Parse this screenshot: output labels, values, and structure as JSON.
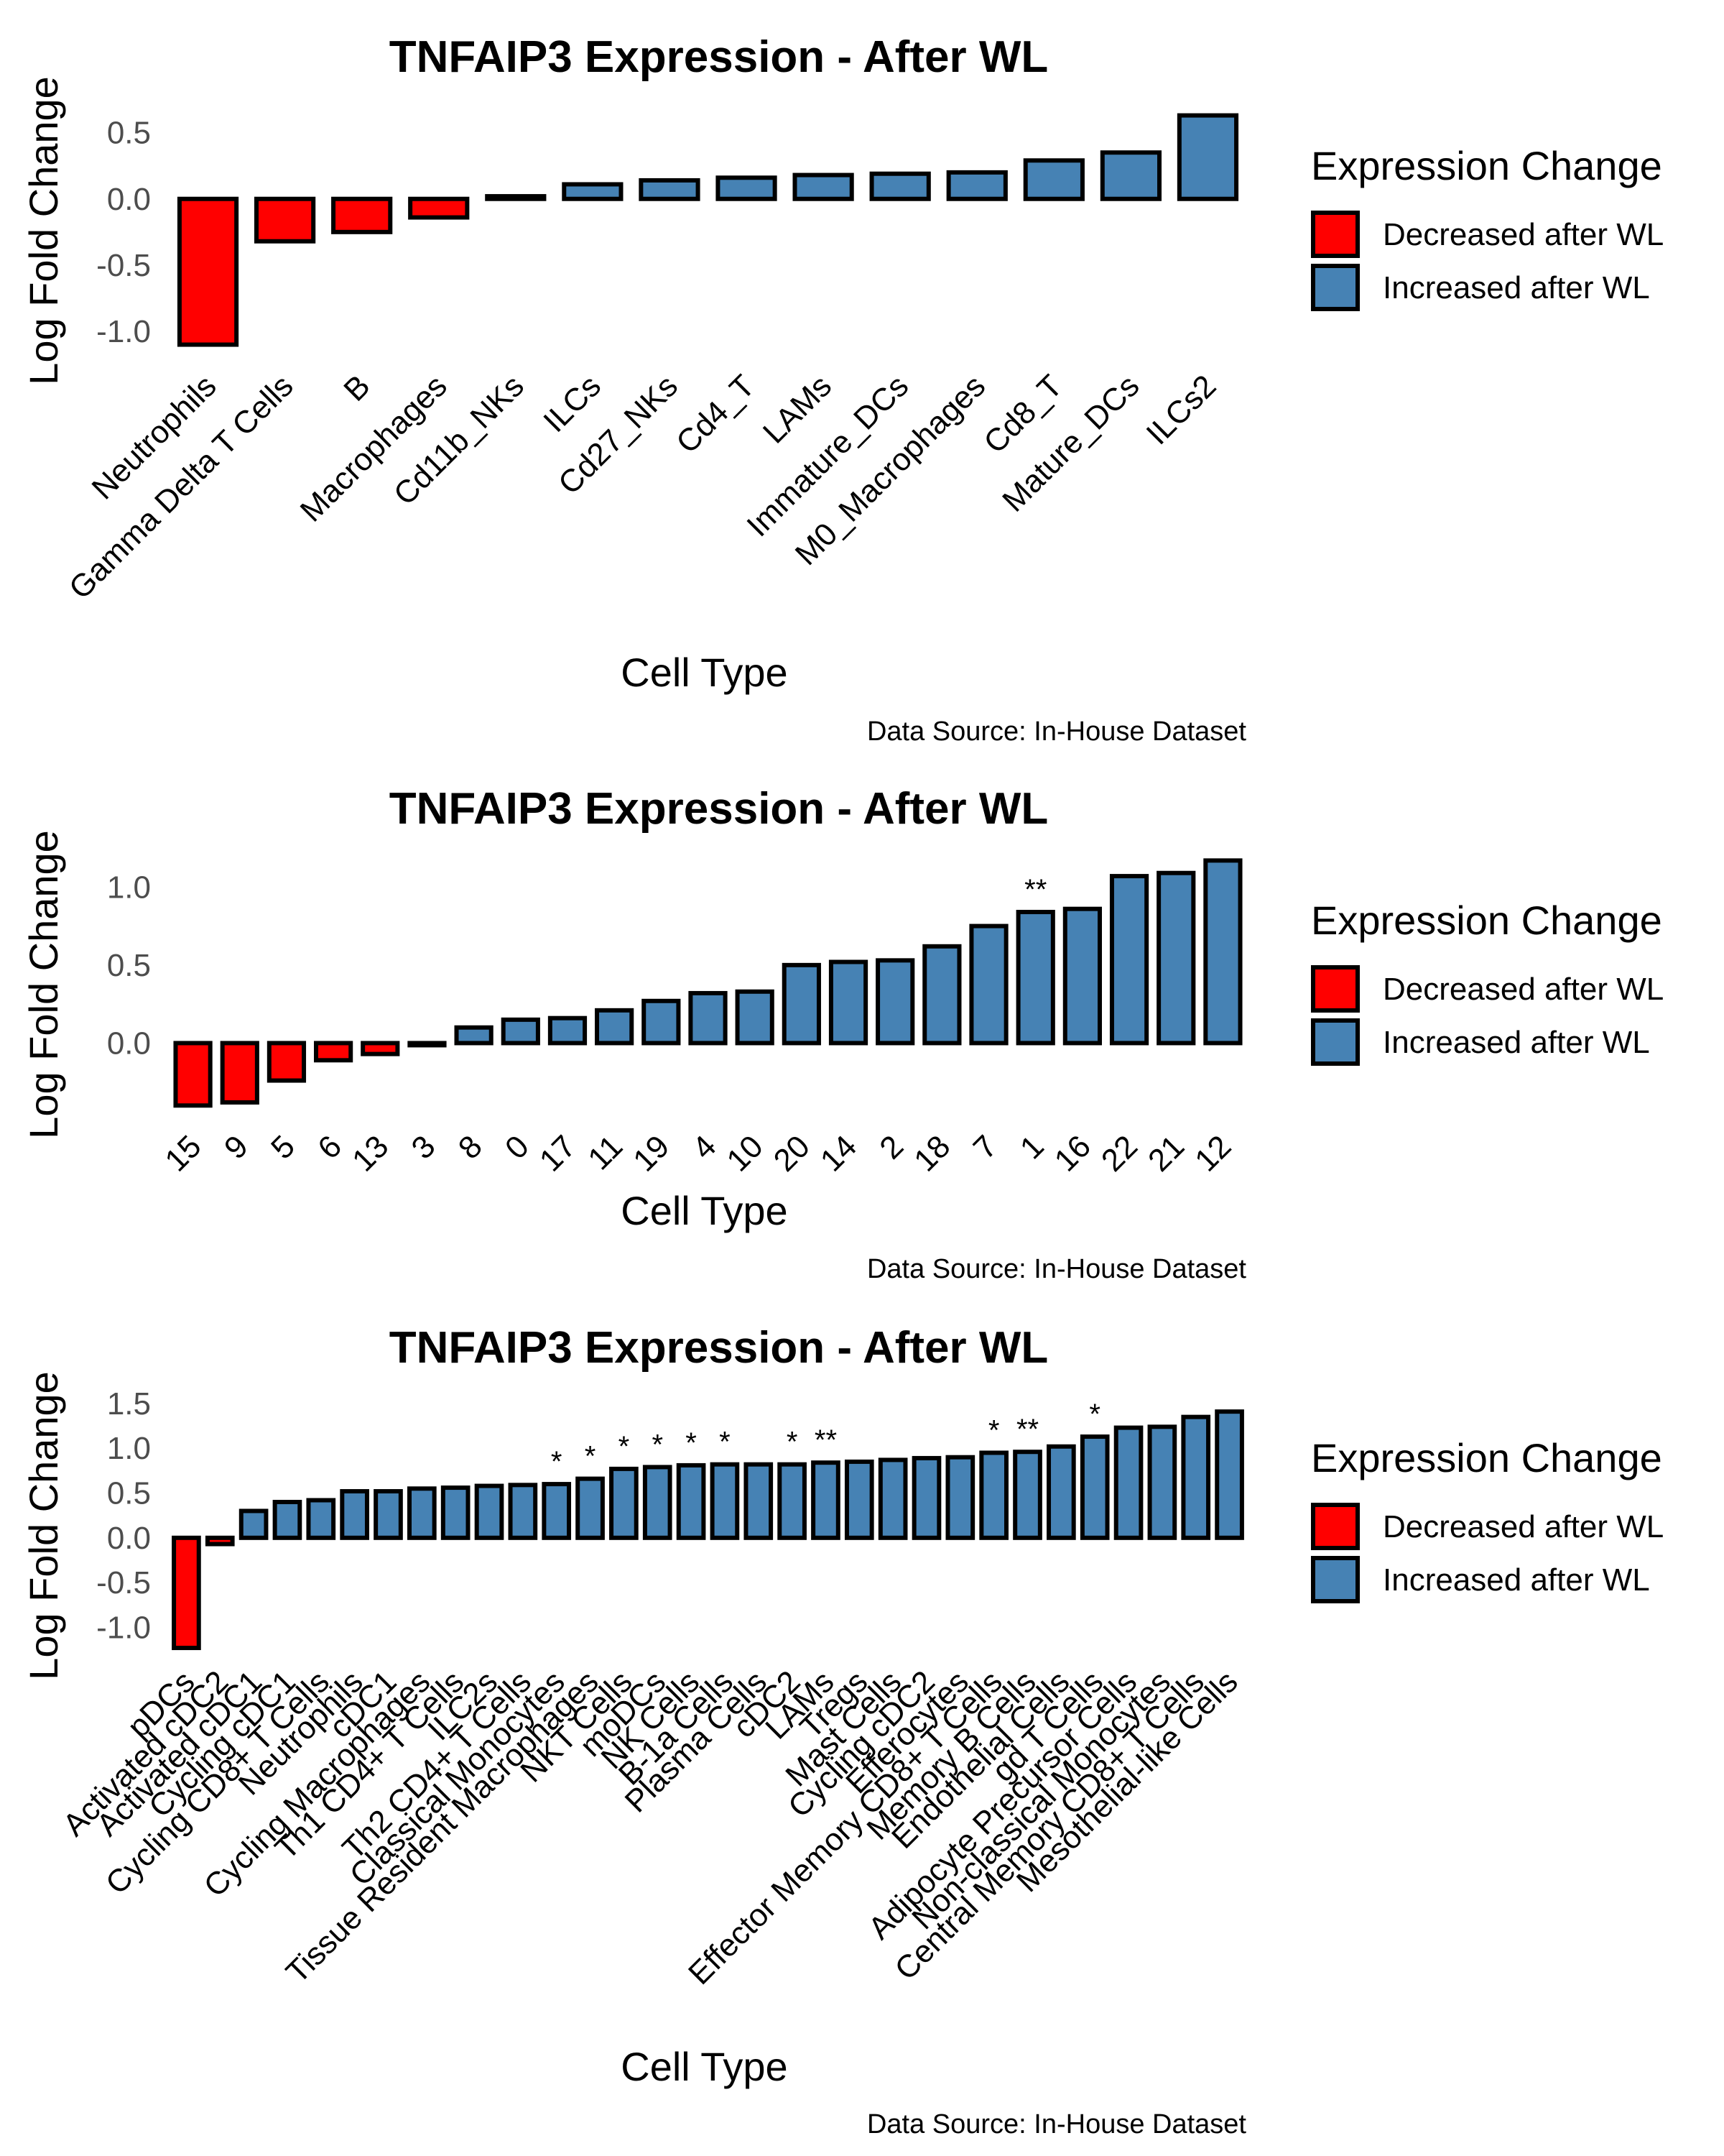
{
  "colors": {
    "decreased": "#FF0000",
    "increased": "#4682B4",
    "outline": "#000000"
  },
  "chart_data": [
    {
      "type": "bar",
      "title": "TNFAIP3 Expression - After WL",
      "xlabel": "Cell Type",
      "ylabel": "Log Fold Change",
      "caption": "Data Source: In-House Dataset",
      "yticks": [
        0.5,
        0.0,
        -0.5,
        -1.0
      ],
      "ytick_labels": [
        "0.5",
        "0.0",
        "-0.5",
        "-1.0"
      ],
      "ylim": [
        -1.2,
        0.72
      ],
      "legend": {
        "title": "Expression Change",
        "position": "right",
        "items": [
          {
            "label": "Decreased after WL",
            "color": "#FF0000"
          },
          {
            "label": "Increased after WL",
            "color": "#4682B4"
          }
        ]
      },
      "categories": [
        "Neutrophils",
        "Gamma Delta T Cells",
        "B",
        "Macrophages",
        "Cd11b_NKs",
        "ILCs",
        "Cd27_NKs",
        "Cd4_T",
        "LAMs",
        "Immature_DCs",
        "M0_Macrophages",
        "Cd8_T",
        "Mature_DCs",
        "ILCs2"
      ],
      "values": [
        -1.1,
        -0.32,
        -0.25,
        -0.14,
        0.02,
        0.11,
        0.14,
        0.16,
        0.18,
        0.19,
        0.2,
        0.29,
        0.35,
        0.63
      ],
      "significance": [
        "",
        "",
        "",
        "",
        "",
        "",
        "",
        "",
        "",
        "",
        "",
        "",
        "",
        ""
      ]
    },
    {
      "type": "bar",
      "title": "TNFAIP3 Expression - After WL",
      "xlabel": "Cell Type",
      "ylabel": "Log Fold Change",
      "caption": "Data Source: In-House Dataset",
      "yticks": [
        1.0,
        0.5,
        0.0
      ],
      "ytick_labels": [
        "1.0",
        "0.5",
        "0.0"
      ],
      "ylim": [
        -0.5,
        1.25
      ],
      "legend": {
        "title": "Expression Change",
        "position": "right",
        "items": [
          {
            "label": "Decreased after WL",
            "color": "#FF0000"
          },
          {
            "label": "Increased after WL",
            "color": "#4682B4"
          }
        ]
      },
      "categories": [
        "15",
        "9",
        "5",
        "6",
        "13",
        "3",
        "8",
        "0",
        "17",
        "11",
        "19",
        "4",
        "10",
        "20",
        "14",
        "2",
        "18",
        "7",
        "1",
        "16",
        "22",
        "21",
        "12"
      ],
      "values": [
        -0.4,
        -0.38,
        -0.24,
        -0.11,
        -0.07,
        -0.01,
        0.1,
        0.15,
        0.16,
        0.21,
        0.27,
        0.32,
        0.33,
        0.5,
        0.52,
        0.53,
        0.62,
        0.75,
        0.84,
        0.86,
        1.07,
        1.09,
        1.17
      ],
      "significance": [
        "",
        "",
        "",
        "",
        "",
        "",
        "",
        "",
        "",
        "",
        "",
        "",
        "",
        "",
        "",
        "",
        "",
        "",
        "**",
        "",
        "",
        "",
        ""
      ]
    },
    {
      "type": "bar",
      "title": "TNFAIP3 Expression - After WL",
      "xlabel": "Cell Type",
      "ylabel": "Log Fold Change",
      "caption": "Data Source: In-House Dataset",
      "yticks": [
        1.5,
        1.0,
        0.5,
        0.0,
        -0.5,
        -1.0
      ],
      "ytick_labels": [
        "1.5",
        "1.0",
        "0.5",
        "0.0",
        "-0.5",
        "-1.0"
      ],
      "ylim": [
        -1.35,
        1.62
      ],
      "legend": {
        "title": "Expression Change",
        "position": "right",
        "items": [
          {
            "label": "Decreased after WL",
            "color": "#FF0000"
          },
          {
            "label": "Increased after WL",
            "color": "#4682B4"
          }
        ]
      },
      "categories": [
        "pDCs",
        "Activated cDC2",
        "Activated cDC1",
        "Cycling cDC1",
        "Cycling CD8+ T Cells",
        "Neutrophils",
        "cDC1",
        "Cycling Macrophages",
        "Th1 CD4+ T Cells",
        "ILC2s",
        "Th2 CD4+ T Cells",
        "Classical Monocytes",
        "Tissue Resident Macrophages",
        "NKT Cells",
        "moDCs",
        "NK Cells",
        "B-1a Cells",
        "Plasma Cells",
        "cDC2",
        "LAMs",
        "Tregs",
        "Mast Cells",
        "Cycling cDC2",
        "Efferocytes",
        "Effector Memory CD8+ T Cells",
        "Memory B Cells",
        "Endothelial Cells",
        "gd T Cells",
        "Adipocyte Precursor Cells",
        "Non-classical Monocytes",
        "Central Memory CD8+ T Cells",
        "Mesothelial-like Cells"
      ],
      "values": [
        -1.23,
        -0.07,
        0.3,
        0.4,
        0.42,
        0.52,
        0.52,
        0.55,
        0.56,
        0.58,
        0.59,
        0.6,
        0.66,
        0.77,
        0.79,
        0.81,
        0.82,
        0.82,
        0.82,
        0.84,
        0.85,
        0.87,
        0.89,
        0.9,
        0.95,
        0.96,
        1.02,
        1.13,
        1.23,
        1.24,
        1.35,
        1.41
      ],
      "significance": [
        "",
        "",
        "",
        "",
        "",
        "",
        "",
        "",
        "",
        "",
        "",
        "*",
        "*",
        "*",
        "*",
        "*",
        "*",
        "",
        "*",
        "**",
        "",
        "",
        "",
        "",
        "*",
        "**",
        "",
        "*",
        "",
        "",
        "",
        ""
      ]
    }
  ]
}
